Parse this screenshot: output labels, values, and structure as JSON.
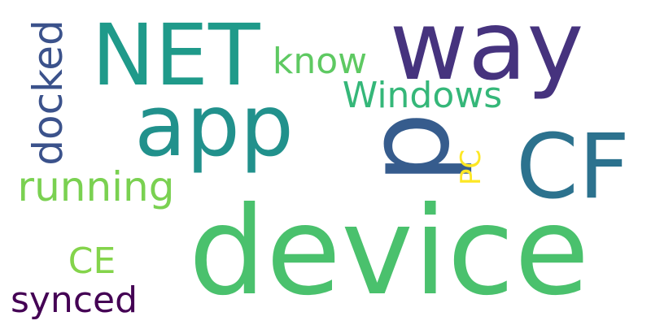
{
  "words": [
    {
      "text": "device",
      "color": "#4ac16d",
      "rotated": false
    },
    {
      "text": "way",
      "color": "#46337e",
      "rotated": false
    },
    {
      "text": "NET",
      "color": "#1f9a8a",
      "rotated": false
    },
    {
      "text": "app",
      "color": "#21918c",
      "rotated": false
    },
    {
      "text": "CF",
      "color": "#2c728e",
      "rotated": false
    },
    {
      "text": "p",
      "color": "#365c8d",
      "rotated": true
    },
    {
      "text": "running",
      "color": "#7ad151",
      "rotated": false
    },
    {
      "text": "docked",
      "color": "#3b528b",
      "rotated": true
    },
    {
      "text": "Windows",
      "color": "#35b779",
      "rotated": false
    },
    {
      "text": "know",
      "color": "#5ec962",
      "rotated": false
    },
    {
      "text": "CE",
      "color": "#84d44b",
      "rotated": false
    },
    {
      "text": "synced",
      "color": "#440154",
      "rotated": false
    },
    {
      "text": "PC",
      "color": "#fde725",
      "rotated": true
    }
  ]
}
